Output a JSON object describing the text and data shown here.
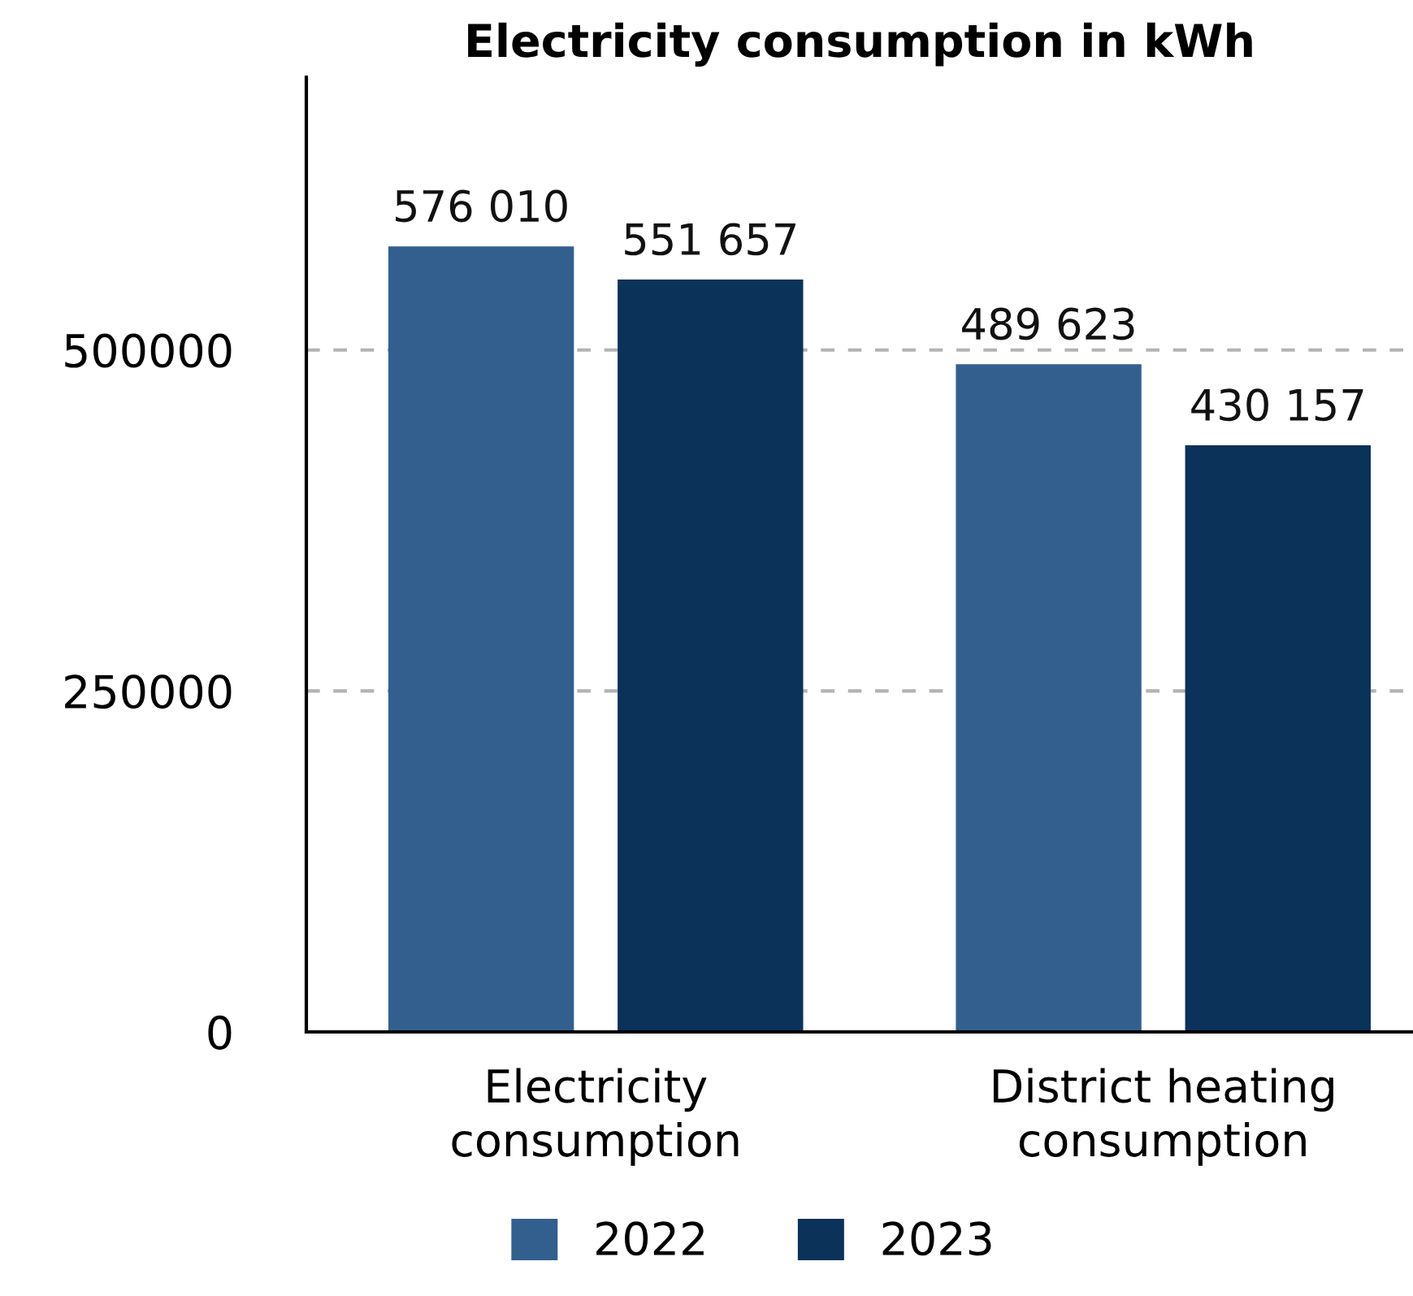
{
  "chart_data": {
    "type": "bar",
    "title": "Electricity consumption in kWh",
    "categories": [
      "Electricity\nconsumption",
      "District heating\nconsumption"
    ],
    "series": [
      {
        "name": "2022",
        "color": "#335f8f",
        "values": [
          576010,
          489623
        ],
        "value_labels": [
          "576 010",
          "489 623"
        ]
      },
      {
        "name": "2023",
        "color": "#0b3259",
        "values": [
          551657,
          430157
        ],
        "value_labels": [
          "551 657",
          "430 157"
        ]
      }
    ],
    "ylim": [
      0,
      700000
    ],
    "yticks": [
      0,
      250000,
      500000
    ],
    "grid": "y",
    "legend": "bottom"
  }
}
